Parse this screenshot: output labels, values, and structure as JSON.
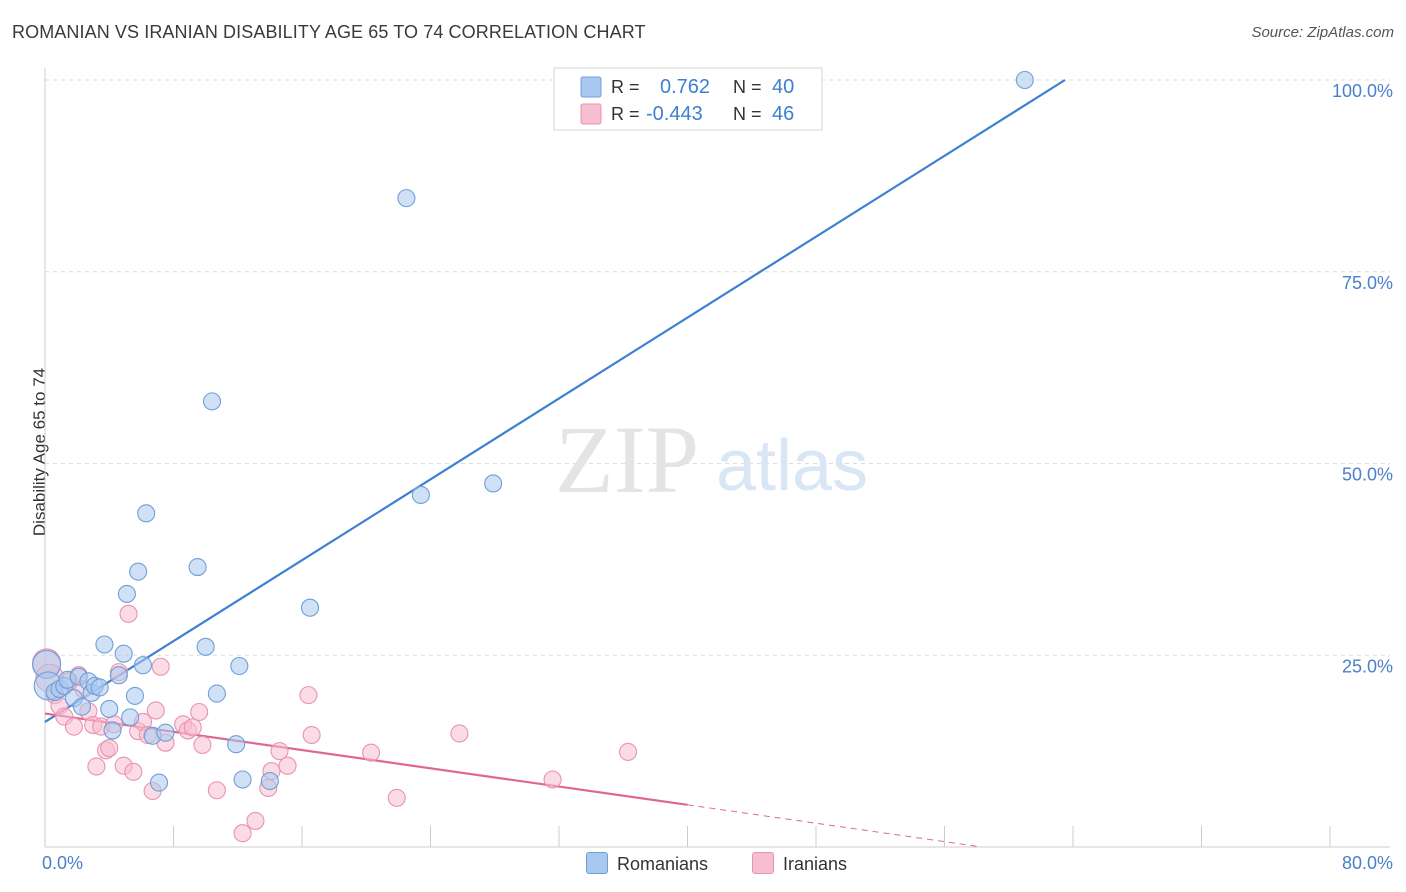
{
  "title": "ROMANIAN VS IRANIAN DISABILITY AGE 65 TO 74 CORRELATION CHART",
  "source": "Source: ZipAtlas.com",
  "watermark": {
    "zip": "ZIP",
    "atlas": "atlas"
  },
  "legend_top": [
    {
      "r_label": "R =",
      "r_value": "0.762",
      "n_label": "N =",
      "n_value": "40"
    },
    {
      "r_label": "R =",
      "r_value": "-0.443",
      "n_label": "N =",
      "n_value": "46"
    }
  ],
  "legend_bottom": [
    {
      "label": "Romanians"
    },
    {
      "label": "Iranians"
    }
  ],
  "colors": {
    "blue_fill": "#a9c8ef",
    "blue_stroke": "#6f9fd9",
    "blue_line": "#3d7fd0",
    "pink_fill": "#f7bed0",
    "pink_stroke": "#e993b0",
    "pink_line": "#e06795",
    "tick_text": "#4a7fc9",
    "grid": "#dcdcdc"
  },
  "chart_data": {
    "type": "scatter",
    "title": "ROMANIAN VS IRANIAN DISABILITY AGE 65 TO 74 CORRELATION CHART",
    "xlabel": "",
    "ylabel": "Disability Age 65 to 74",
    "xlim": [
      0,
      80
    ],
    "ylim": [
      0,
      100
    ],
    "x_tick_labels": [
      "0.0%",
      "80.0%"
    ],
    "y_ticks": [
      25,
      50,
      75,
      100
    ],
    "y_tick_labels": [
      "25.0%",
      "50.0%",
      "75.0%",
      "100.0%"
    ],
    "grid": true,
    "legend_position": "top-center",
    "series": [
      {
        "name": "Romanians",
        "r": 0.762,
        "n": 40,
        "trend": {
          "x": [
            0,
            63.5
          ],
          "y": [
            16.3,
            100
          ]
        },
        "points": [
          [
            0.1,
            23.8
          ],
          [
            0.2,
            21.0
          ],
          [
            0.6,
            20.2
          ],
          [
            0.9,
            20.6
          ],
          [
            1.2,
            21.0
          ],
          [
            1.4,
            21.8
          ],
          [
            1.8,
            19.4
          ],
          [
            2.1,
            22.2
          ],
          [
            2.3,
            18.3
          ],
          [
            2.7,
            21.6
          ],
          [
            2.9,
            20.1
          ],
          [
            3.1,
            21.0
          ],
          [
            3.4,
            20.8
          ],
          [
            3.7,
            26.4
          ],
          [
            4.0,
            18.0
          ],
          [
            4.2,
            15.2
          ],
          [
            4.6,
            22.4
          ],
          [
            4.9,
            25.2
          ],
          [
            5.1,
            33.0
          ],
          [
            5.3,
            16.9
          ],
          [
            5.6,
            19.7
          ],
          [
            5.8,
            35.9
          ],
          [
            6.1,
            23.7
          ],
          [
            6.3,
            43.5
          ],
          [
            6.7,
            14.5
          ],
          [
            7.1,
            8.4
          ],
          [
            7.5,
            14.9
          ],
          [
            9.5,
            36.5
          ],
          [
            10.0,
            26.1
          ],
          [
            10.4,
            58.1
          ],
          [
            10.7,
            20.0
          ],
          [
            11.9,
            13.4
          ],
          [
            12.1,
            23.6
          ],
          [
            12.3,
            8.8
          ],
          [
            14.0,
            8.6
          ],
          [
            16.5,
            31.2
          ],
          [
            22.5,
            84.6
          ],
          [
            23.4,
            45.9
          ],
          [
            27.9,
            47.4
          ],
          [
            61.0,
            100.0
          ]
        ]
      },
      {
        "name": "Iranians",
        "r": -0.443,
        "n": 46,
        "trend": {
          "x": [
            0,
            40
          ],
          "y": [
            17.4,
            5.5
          ]
        },
        "trend_dashed": {
          "x": [
            40,
            58
          ],
          "y": [
            5.5,
            0.1
          ]
        },
        "points": [
          [
            0.1,
            24.0
          ],
          [
            0.3,
            22.0
          ],
          [
            0.6,
            19.8
          ],
          [
            0.9,
            18.4
          ],
          [
            1.2,
            17.0
          ],
          [
            1.5,
            21.6
          ],
          [
            1.8,
            15.7
          ],
          [
            2.1,
            22.4
          ],
          [
            2.4,
            20.6
          ],
          [
            2.7,
            17.7
          ],
          [
            3.0,
            15.9
          ],
          [
            3.2,
            10.5
          ],
          [
            3.5,
            15.7
          ],
          [
            3.8,
            12.6
          ],
          [
            4.0,
            12.9
          ],
          [
            4.3,
            16.0
          ],
          [
            4.6,
            22.8
          ],
          [
            4.9,
            10.6
          ],
          [
            5.2,
            30.4
          ],
          [
            5.5,
            9.8
          ],
          [
            5.8,
            15.1
          ],
          [
            6.1,
            16.3
          ],
          [
            6.4,
            14.6
          ],
          [
            6.7,
            7.3
          ],
          [
            6.9,
            17.8
          ],
          [
            7.2,
            23.5
          ],
          [
            7.5,
            13.6
          ],
          [
            8.6,
            16.0
          ],
          [
            8.9,
            15.2
          ],
          [
            9.2,
            15.6
          ],
          [
            9.6,
            17.6
          ],
          [
            9.8,
            13.3
          ],
          [
            10.7,
            7.4
          ],
          [
            12.3,
            1.8
          ],
          [
            13.1,
            3.4
          ],
          [
            13.9,
            7.7
          ],
          [
            14.1,
            9.9
          ],
          [
            14.6,
            12.5
          ],
          [
            15.1,
            10.6
          ],
          [
            16.4,
            19.8
          ],
          [
            16.6,
            14.6
          ],
          [
            20.3,
            12.3
          ],
          [
            21.9,
            6.4
          ],
          [
            25.8,
            14.8
          ],
          [
            31.6,
            8.8
          ],
          [
            36.3,
            12.4
          ]
        ]
      }
    ]
  }
}
